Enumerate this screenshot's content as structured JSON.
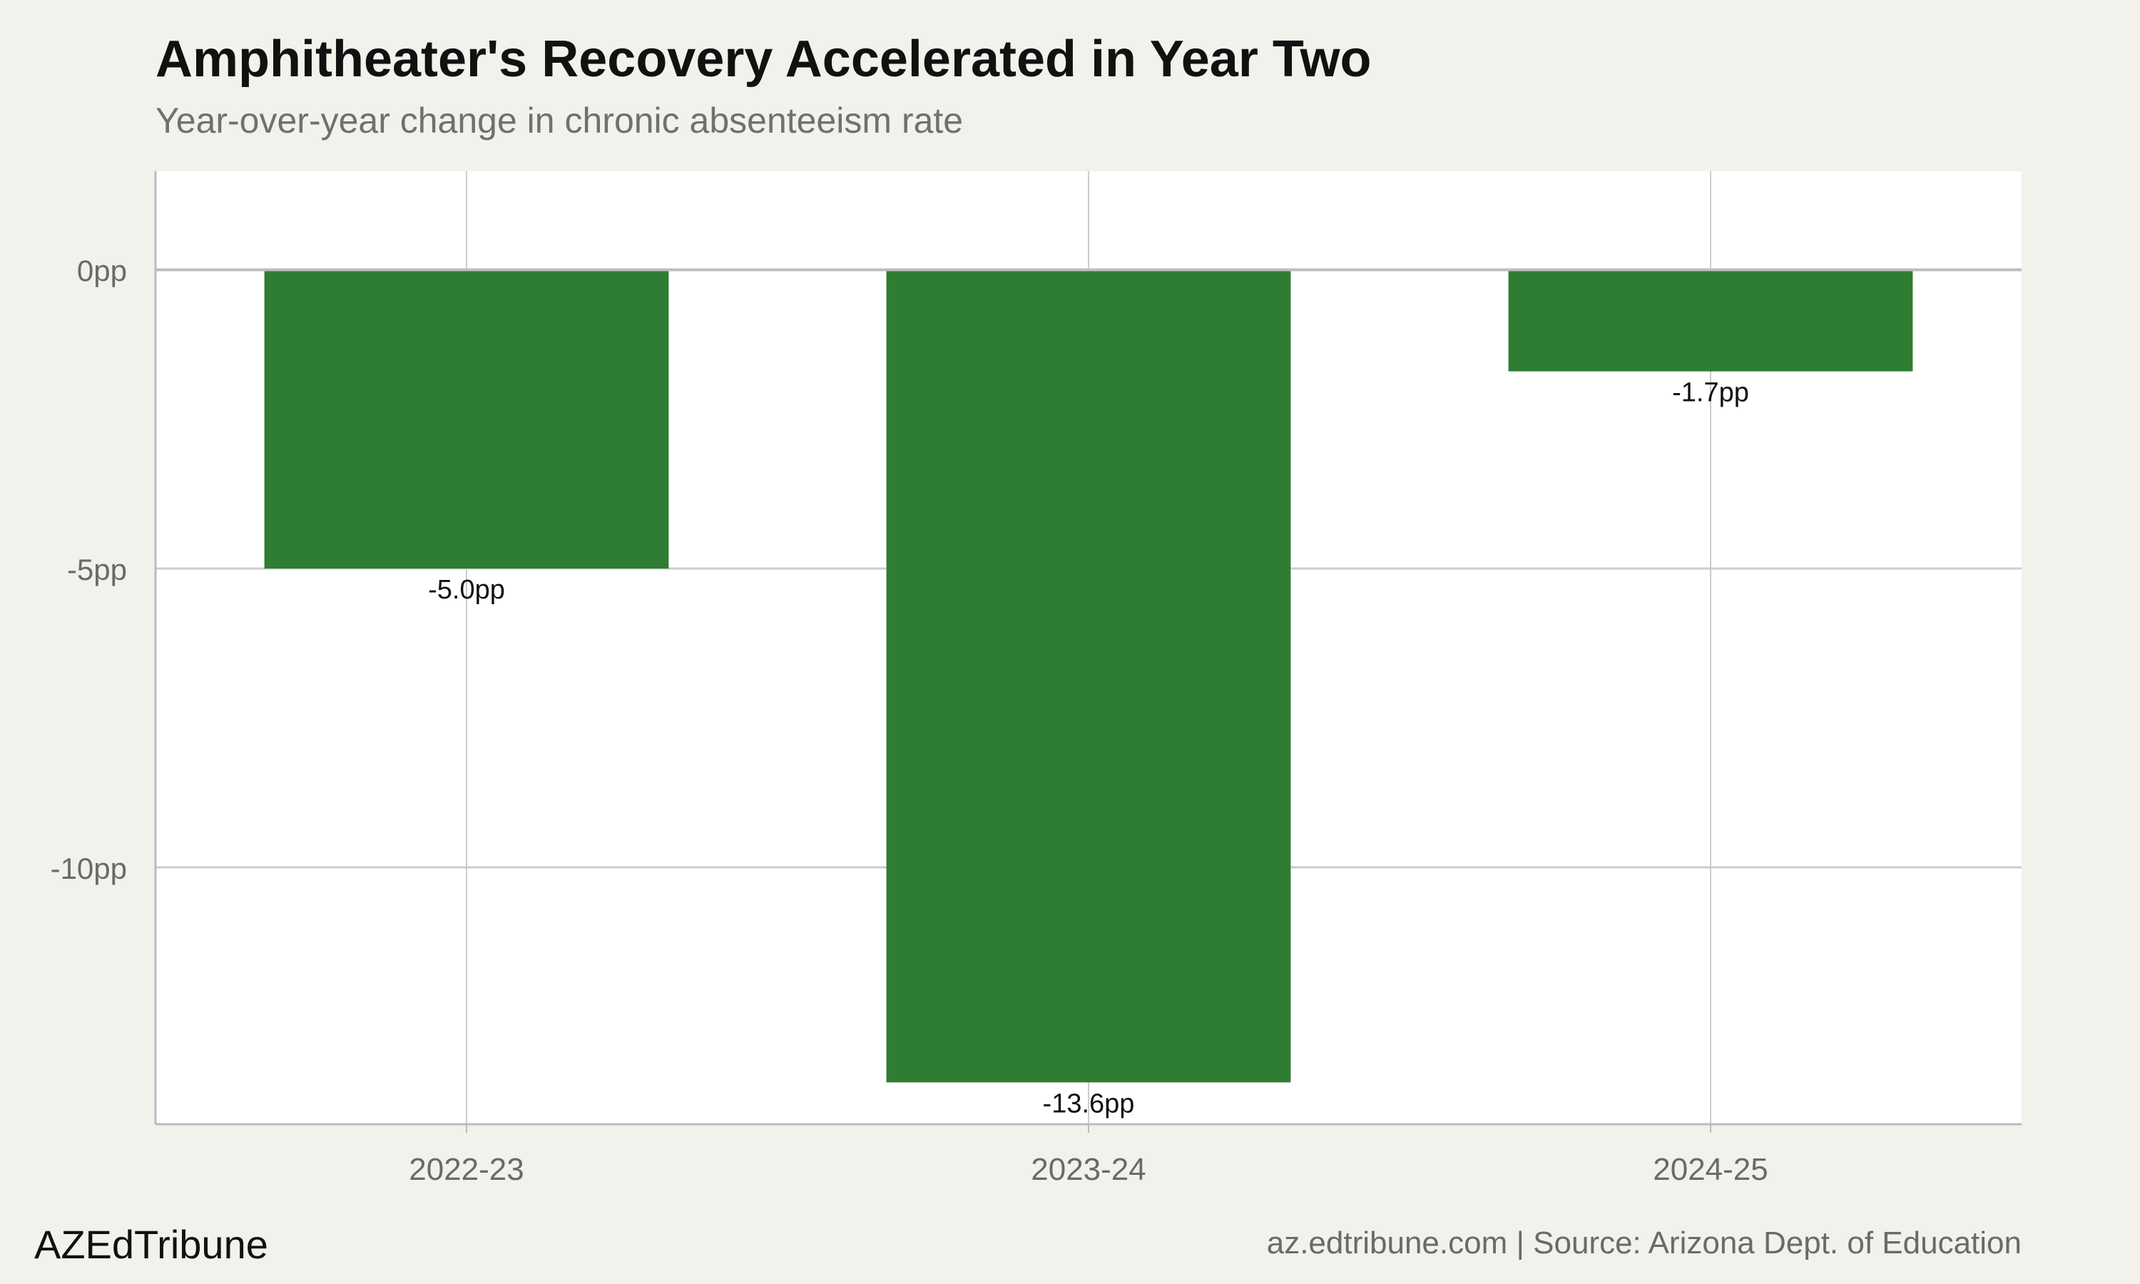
{
  "chart_data": {
    "type": "bar",
    "title": "Amphitheater's Recovery Accelerated in Year Two",
    "subtitle": "Year-over-year change in chronic absenteeism rate",
    "categories": [
      "2022-23",
      "2023-24",
      "2024-25"
    ],
    "values": [
      -5.0,
      -13.6,
      -1.7
    ],
    "data_labels": [
      "-5.0pp",
      "-13.6pp",
      "-1.7pp"
    ],
    "y_ticks": [
      0,
      -5,
      -10
    ],
    "y_tick_labels": [
      "0pp",
      "-5pp",
      "-10pp"
    ],
    "ylim": [
      -14.3,
      1.65
    ],
    "xlabel": "",
    "ylabel": "",
    "grid": true,
    "legend": "none",
    "bar_color": "#2e7d32"
  },
  "footer": {
    "brand": "AZEdTribune",
    "caption": "az.edtribune.com | Source: Arizona Dept. of Education"
  },
  "colors": {
    "background": "#f3f1ec",
    "panel": "#ffffff",
    "grid": "#cccccc",
    "bar": "#2e7d32"
  }
}
